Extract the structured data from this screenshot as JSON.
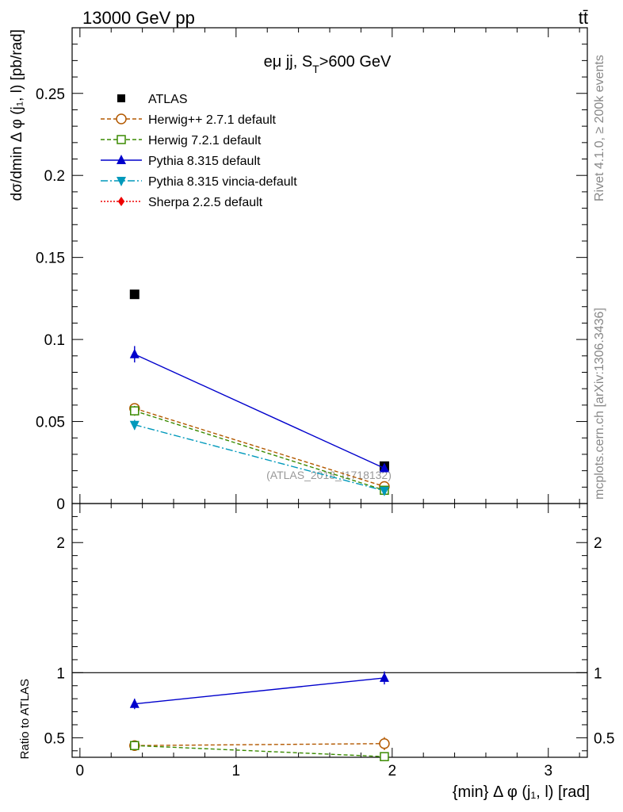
{
  "header": {
    "left": "13000 GeV pp",
    "right": "tt̄"
  },
  "side_text": {
    "rivet": "Rivet 4.1.0, ≥ 200k events",
    "mcplots": "mcplots.cern.ch [arXiv:1306.3436]"
  },
  "watermark": "(ATLAS_2018_I1718132)",
  "chart_data": {
    "type": "scatter",
    "title": "eμ jj, S_T>600 GeV",
    "title_parts": {
      "main": "eμ jj, S",
      "sub": "T",
      "tail": ">600 GeV"
    },
    "ylabel": "dσ/dmin Δ φ (j₁, l) [pb/rad]",
    "xlabel": "{min} Δ φ (j₁, l) [rad]",
    "ratio_ylabel": "Ratio to ATLAS",
    "xlim": [
      -0.05,
      3.25
    ],
    "ylim": [
      0,
      0.29
    ],
    "ratio_ylim": [
      0.35,
      2.3
    ],
    "x_ticks": [
      {
        "v": 0,
        "label": "0"
      },
      {
        "v": 1,
        "label": "1"
      },
      {
        "v": 2,
        "label": "2"
      },
      {
        "v": 3,
        "label": "3"
      }
    ],
    "y_ticks": [
      {
        "v": 0,
        "label": "0"
      },
      {
        "v": 0.05,
        "label": "0.05"
      },
      {
        "v": 0.1,
        "label": "0.1"
      },
      {
        "v": 0.15,
        "label": "0.15"
      },
      {
        "v": 0.2,
        "label": "0.2"
      },
      {
        "v": 0.25,
        "label": "0.25"
      }
    ],
    "ratio_ticks": [
      {
        "v": 0.5,
        "label": "0.5"
      },
      {
        "v": 1,
        "label": "1"
      },
      {
        "v": 2,
        "label": "2"
      }
    ],
    "x": [
      0.35,
      1.95
    ],
    "series": [
      {
        "name": "ATLAS",
        "key": "atlas",
        "color": "#000000",
        "style": "solid",
        "marker": "square-filled",
        "line": false,
        "values": [
          0.1275,
          0.0228
        ],
        "errors": [
          0.0015,
          0.0008
        ],
        "ratio": [
          1.0,
          1.0
        ],
        "ratio_err": [
          0,
          0
        ]
      },
      {
        "name": "Herwig++ 2.7.1 default",
        "key": "herwigpp",
        "color": "#b35900",
        "style": "dashed",
        "marker": "circle-open",
        "line": true,
        "values": [
          0.058,
          0.0104
        ],
        "errors": [
          0.003,
          0.0015
        ],
        "ratio": [
          0.44,
          0.455
        ],
        "ratio_err": [
          0.035,
          0.05
        ]
      },
      {
        "name": "Herwig 7.2.1 default",
        "key": "herwig7",
        "color": "#3a8a00",
        "style": "dashed",
        "marker": "square-open",
        "line": true,
        "values": [
          0.0565,
          0.0081
        ],
        "errors": [
          0.003,
          0.0012
        ],
        "ratio": [
          0.44,
          0.355
        ],
        "ratio_err": [
          0.035,
          0.03
        ]
      },
      {
        "name": "Pythia 8.315 default",
        "key": "pythia",
        "color": "#0000cc",
        "style": "solid",
        "marker": "triangle-up",
        "line": true,
        "values": [
          0.091,
          0.0215
        ],
        "errors": [
          0.005,
          0.002
        ],
        "ratio": [
          0.76,
          0.96
        ],
        "ratio_err": [
          0.04,
          0.05
        ]
      },
      {
        "name": "Pythia 8.315 vincia-default",
        "key": "vincia",
        "color": "#0099bb",
        "style": "dashdot",
        "marker": "triangle-down",
        "line": true,
        "values": [
          0.048,
          0.0078
        ],
        "errors": [
          0.003,
          0.0012
        ],
        "ratio": [],
        "ratio_err": []
      },
      {
        "name": "Sherpa 2.2.5 default",
        "key": "sherpa",
        "color": "#ee0000",
        "style": "dotted",
        "marker": "diamond",
        "line": true,
        "values": [],
        "errors": [],
        "ratio": [],
        "ratio_err": []
      }
    ]
  }
}
